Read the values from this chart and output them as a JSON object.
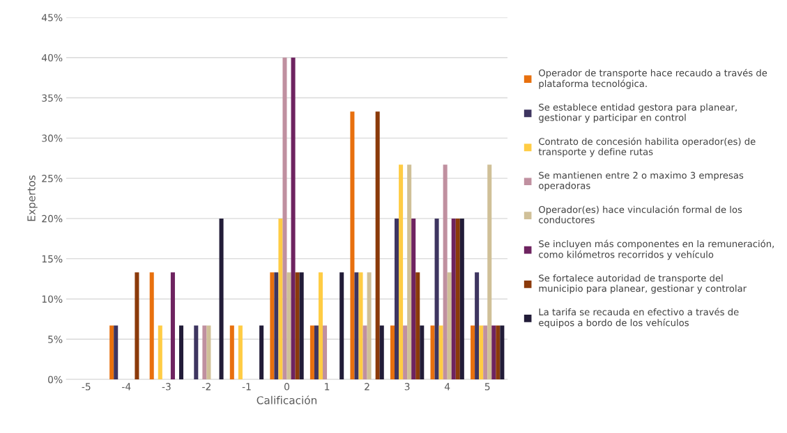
{
  "chart_data": {
    "type": "bar",
    "xlabel": "Calificación",
    "ylabel": "Expertos",
    "categories": [
      "-5",
      "-4",
      "-3",
      "-2",
      "-1",
      "0",
      "1",
      "2",
      "3",
      "4",
      "5"
    ],
    "ylim": [
      0,
      45
    ],
    "yticks": [
      {
        "value": 0,
        "label": "0%"
      },
      {
        "value": 5,
        "label": "5%"
      },
      {
        "value": 10,
        "label": "10%"
      },
      {
        "value": 15,
        "label": "15%"
      },
      {
        "value": 20,
        "label": "20%"
      },
      {
        "value": 25,
        "label": "25%"
      },
      {
        "value": 30,
        "label": "30%"
      },
      {
        "value": 35,
        "label": "35%"
      },
      {
        "value": 40,
        "label": "40%"
      },
      {
        "value": 45,
        "label": "45%"
      }
    ],
    "grid": "y",
    "legend": "right",
    "series": [
      {
        "name": "Operador de transporte hace recaudo a través de plataforma tecnológica.",
        "color": "#e8700e",
        "values": [
          0,
          6.7,
          13.3,
          0,
          6.7,
          13.3,
          6.7,
          33.3,
          6.7,
          6.7,
          6.7
        ]
      },
      {
        "name": "Se establece entidad gestora para planear, gestionar y participar en control",
        "color": "#3e3560",
        "values": [
          0,
          6.7,
          0,
          6.7,
          0,
          13.3,
          6.7,
          13.3,
          20,
          20,
          13.3
        ]
      },
      {
        "name": "Contrato de concesión habilita operador(es) de transporte y define rutas",
        "color": "#ffcc44",
        "values": [
          0,
          0,
          6.7,
          0,
          6.7,
          20,
          13.3,
          13.3,
          26.7,
          6.7,
          6.7
        ]
      },
      {
        "name": "Se mantienen entre 2 o maximo 3 empresas operadoras",
        "color": "#c090a0",
        "values": [
          0,
          0,
          0,
          6.7,
          0,
          40,
          6.7,
          6.7,
          6.7,
          26.7,
          6.7
        ]
      },
      {
        "name": "Operador(es) hace vinculación formal de los conductores",
        "color": "#d0c098",
        "values": [
          0,
          0,
          0,
          6.7,
          0,
          13.3,
          0,
          13.3,
          26.7,
          13.3,
          26.7
        ]
      },
      {
        "name": "Se incluyen más componentes en la remuneración, como kilómetros recorridos y vehículo",
        "color": "#6e2360",
        "values": [
          0,
          0,
          13.3,
          0,
          0,
          40,
          0,
          0,
          20,
          20,
          6.7
        ]
      },
      {
        "name": "Se fortalece autoridad de transporte del municipio para planear, gestionar y controlar",
        "color": "#8b3a0a",
        "values": [
          0,
          13.3,
          0,
          0,
          0,
          13.3,
          0,
          33.3,
          13.3,
          20,
          6.7
        ]
      },
      {
        "name": "La tarifa se recauda en efectivo a través de equipos a bordo de los vehículos",
        "color": "#221c38",
        "values": [
          0,
          0,
          6.7,
          20,
          6.7,
          13.3,
          13.3,
          6.7,
          6.7,
          20,
          6.7
        ]
      }
    ]
  }
}
